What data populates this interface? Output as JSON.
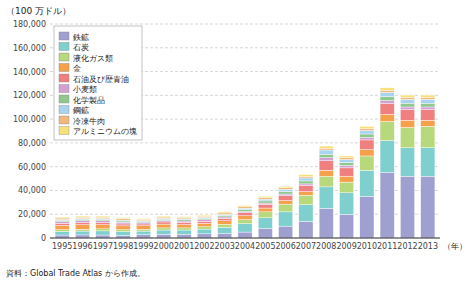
{
  "chart_data": {
    "type": "bar",
    "stacked": true,
    "ylabel": "（100 万ドル）",
    "xlabel": "（年）",
    "source": "資料：Global Trade Atlas から作成。",
    "categories": [
      "1995",
      "1996",
      "1997",
      "1998",
      "1999",
      "2000",
      "2001",
      "2002",
      "2003",
      "2004",
      "2005",
      "2006",
      "2007",
      "2008",
      "2009",
      "2010",
      "2011",
      "2012",
      "2013"
    ],
    "series": [
      {
        "name": "鉄鉱",
        "color": "#a0a0d0",
        "values": [
          2500,
          2600,
          2500,
          2200,
          2800,
          3200,
          3200,
          3500,
          4000,
          5000,
          8000,
          10000,
          14000,
          25000,
          20000,
          35000,
          55000,
          52000,
          52000
        ]
      },
      {
        "name": "石炭",
        "color": "#7fcfcf",
        "values": [
          3000,
          3200,
          3500,
          3200,
          3000,
          3500,
          3500,
          4000,
          5000,
          7000,
          9000,
          12000,
          14000,
          18000,
          18000,
          22000,
          27000,
          24000,
          24000
        ]
      },
      {
        "name": "液化ガス類",
        "color": "#b8d87c",
        "values": [
          1500,
          1600,
          1700,
          1600,
          1500,
          1800,
          1800,
          2000,
          2500,
          3500,
          5000,
          6500,
          8000,
          9000,
          9000,
          12000,
          16000,
          17000,
          18000
        ]
      },
      {
        "name": "金",
        "color": "#f5a04a",
        "values": [
          3500,
          3800,
          3500,
          3200,
          3000,
          3200,
          2800,
          2800,
          3000,
          3200,
          3200,
          3000,
          3000,
          5000,
          5000,
          5500,
          6000,
          6000,
          5000
        ]
      },
      {
        "name": "石油及び歴青油",
        "color": "#f08080",
        "values": [
          1800,
          1800,
          1800,
          1600,
          1500,
          1800,
          1800,
          1800,
          2000,
          2500,
          3000,
          4000,
          5000,
          8000,
          7000,
          8000,
          9000,
          9000,
          9000
        ]
      },
      {
        "name": "小麦類",
        "color": "#d4a0d4",
        "values": [
          1500,
          1500,
          1500,
          1500,
          1200,
          1200,
          1200,
          1200,
          1200,
          1200,
          1200,
          1500,
          1500,
          2500,
          2000,
          2000,
          2500,
          2200,
          2200
        ]
      },
      {
        "name": "化学製品",
        "color": "#90c890",
        "values": [
          1000,
          1000,
          1000,
          1000,
          900,
          1000,
          1000,
          1000,
          1200,
          1500,
          1800,
          2000,
          2500,
          3000,
          2500,
          3000,
          3500,
          3200,
          3200
        ]
      },
      {
        "name": "鋼鉱",
        "color": "#a8d4f0",
        "values": [
          800,
          800,
          800,
          800,
          700,
          800,
          800,
          900,
          1000,
          1200,
          1500,
          2000,
          2500,
          3500,
          2500,
          3000,
          3500,
          3200,
          3200
        ]
      },
      {
        "name": "冷凍牛肉",
        "color": "#f0b87c",
        "values": [
          1200,
          1200,
          1200,
          1200,
          1100,
          1100,
          1100,
          1100,
          1200,
          1200,
          1200,
          1300,
          1300,
          1500,
          1500,
          1500,
          1800,
          1800,
          1800
        ]
      },
      {
        "name": "アルミニウムの塊",
        "color": "#f5e07a",
        "values": [
          800,
          900,
          900,
          800,
          700,
          800,
          800,
          800,
          900,
          1000,
          1100,
          1200,
          1500,
          1800,
          1500,
          1800,
          2000,
          1800,
          1800
        ]
      }
    ],
    "ylim": [
      0,
      180000
    ],
    "yticks": [
      0,
      {
        "value": 20000,
        "label": "20,000"
      },
      {
        "value": 40000,
        "label": "40,000"
      },
      {
        "value": 60000,
        "label": "60,000"
      },
      {
        "value": 80000,
        "label": "80,000"
      },
      {
        "value": 100000,
        "label": "100,000"
      },
      {
        "value": 120000,
        "label": "120,000"
      },
      {
        "value": 140000,
        "label": "140,000"
      },
      {
        "value": 160000,
        "label": "160,000"
      },
      {
        "value": 180000,
        "label": "180,000"
      }
    ],
    "grid": true,
    "legend": "upper left"
  }
}
